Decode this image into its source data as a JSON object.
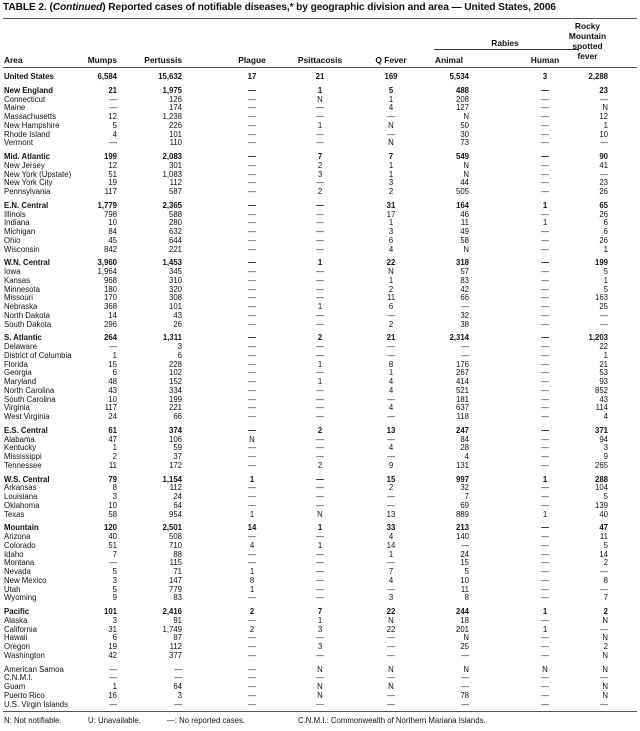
{
  "title": {
    "prefix": "TABLE 2. (",
    "continued": "Continued",
    "rest": ") Reported cases of notifiable diseases,* by geographic division and area — United States, 2006"
  },
  "headers": {
    "area": "Area",
    "mumps": "Mumps",
    "pertussis": "Pertussis",
    "plague": "Plague",
    "psittacosis": "Psittacosis",
    "q_fever": "Q Fever",
    "rabies": "Rabies",
    "animal": "Animal",
    "human": "Human",
    "rmsf": [
      "Rocky",
      "Mountain",
      "spotted",
      "fever"
    ]
  },
  "groups": [
    {
      "division": [
        "United States",
        "6,584",
        "15,632",
        "17",
        "21",
        "169",
        "5,534",
        "3",
        "2,288"
      ],
      "areas": []
    },
    {
      "division": [
        "New England",
        "21",
        "1,975",
        "—",
        "1",
        "5",
        "488",
        "—",
        "23"
      ],
      "areas": [
        [
          "Connecticut",
          "—",
          "126",
          "—",
          "N",
          "1",
          "208",
          "—",
          "—"
        ],
        [
          "Maine",
          "—",
          "174",
          "—",
          "—",
          "4",
          "127",
          "—",
          "N"
        ],
        [
          "Massachusetts",
          "12",
          "1,238",
          "—",
          "—",
          "—",
          "N",
          "—",
          "12"
        ],
        [
          "New Hampshire",
          "5",
          "226",
          "—",
          "1",
          "N",
          "50",
          "—",
          "1"
        ],
        [
          "Rhode Island",
          "4",
          "101",
          "—",
          "—",
          "—",
          "30",
          "—",
          "10"
        ],
        [
          "Vermont",
          "—",
          "110",
          "—",
          "—",
          "N",
          "73",
          "—",
          "—"
        ]
      ]
    },
    {
      "division": [
        "Mid. Atlantic",
        "199",
        "2,083",
        "—",
        "7",
        "7",
        "549",
        "—",
        "90"
      ],
      "areas": [
        [
          "New Jersey",
          "12",
          "301",
          "—",
          "2",
          "1",
          "N",
          "—",
          "41"
        ],
        [
          "New York (Upstate)",
          "51",
          "1,083",
          "—",
          "3",
          "1",
          "N",
          "—",
          "—"
        ],
        [
          "New York City",
          "19",
          "112",
          "—",
          "—",
          "3",
          "44",
          "—",
          "23"
        ],
        [
          "Pennsylvania",
          "117",
          "587",
          "—",
          "2",
          "2",
          "505",
          "—",
          "26"
        ]
      ]
    },
    {
      "division": [
        "E.N. Central",
        "1,779",
        "2,365",
        "—",
        "—",
        "31",
        "164",
        "1",
        "65"
      ],
      "areas": [
        [
          "Illinois",
          "798",
          "588",
          "—",
          "—",
          "17",
          "46",
          "—",
          "26"
        ],
        [
          "Indiana",
          "10",
          "280",
          "—",
          "—",
          "1",
          "11",
          "1",
          "6"
        ],
        [
          "Michigan",
          "84",
          "632",
          "—",
          "—",
          "3",
          "49",
          "—",
          "6"
        ],
        [
          "Ohio",
          "45",
          "644",
          "—",
          "—",
          "6",
          "58",
          "—",
          "26"
        ],
        [
          "Wisconsin",
          "842",
          "221",
          "—",
          "—",
          "4",
          "N",
          "—",
          "1"
        ]
      ]
    },
    {
      "division": [
        "W.N. Central",
        "3,960",
        "1,453",
        "—",
        "1",
        "22",
        "318",
        "—",
        "199"
      ],
      "areas": [
        [
          "Iowa",
          "1,964",
          "345",
          "—",
          "—",
          "N",
          "57",
          "—",
          "5"
        ],
        [
          "Kansas",
          "968",
          "310",
          "—",
          "—",
          "1",
          "83",
          "—",
          "1"
        ],
        [
          "Minnesota",
          "180",
          "320",
          "—",
          "—",
          "2",
          "42",
          "—",
          "5"
        ],
        [
          "Missouri",
          "170",
          "308",
          "—",
          "—",
          "11",
          "66",
          "—",
          "163"
        ],
        [
          "Nebraska",
          "368",
          "101",
          "—",
          "1",
          "6",
          "—",
          "—",
          "25"
        ],
        [
          "North Dakota",
          "14",
          "43",
          "—",
          "—",
          "—",
          "32",
          "—",
          "—"
        ],
        [
          "South Dakota",
          "296",
          "26",
          "—",
          "—",
          "2",
          "38",
          "—",
          "—"
        ]
      ]
    },
    {
      "division": [
        "S. Atlantic",
        "264",
        "1,311",
        "—",
        "2",
        "21",
        "2,314",
        "—",
        "1,203"
      ],
      "areas": [
        [
          "Delaware",
          "—",
          "3",
          "—",
          "—",
          "—",
          "—",
          "—",
          "22"
        ],
        [
          "District of Columbia",
          "1",
          "6",
          "—",
          "—",
          "—",
          "—",
          "—",
          "1"
        ],
        [
          "Florida",
          "15",
          "228",
          "—",
          "1",
          "8",
          "176",
          "—",
          "21"
        ],
        [
          "Georgia",
          "6",
          "102",
          "—",
          "—",
          "1",
          "267",
          "—",
          "53"
        ],
        [
          "Maryland",
          "48",
          "152",
          "—",
          "1",
          "4",
          "414",
          "—",
          "93"
        ],
        [
          "North Carolina",
          "43",
          "334",
          "—",
          "—",
          "4",
          "521",
          "—",
          "852"
        ],
        [
          "South Carolina",
          "10",
          "199",
          "—",
          "—",
          "—",
          "181",
          "—",
          "43"
        ],
        [
          "Virginia",
          "117",
          "221",
          "—",
          "—",
          "4",
          "637",
          "—",
          "114"
        ],
        [
          "West Virginia",
          "24",
          "66",
          "—",
          "—",
          "—",
          "118",
          "—",
          "4"
        ]
      ]
    },
    {
      "division": [
        "E.S. Central",
        "61",
        "374",
        "—",
        "2",
        "13",
        "247",
        "—",
        "371"
      ],
      "areas": [
        [
          "Alabama",
          "47",
          "106",
          "N",
          "—",
          "—",
          "84",
          "—",
          "94"
        ],
        [
          "Kentucky",
          "1",
          "59",
          "—",
          "—",
          "4",
          "28",
          "—",
          "3"
        ],
        [
          "Mississippi",
          "2",
          "37",
          "—",
          "—",
          "—",
          "4",
          "—",
          "9"
        ],
        [
          "Tennessee",
          "11",
          "172",
          "—",
          "2",
          "9",
          "131",
          "—",
          "265"
        ]
      ]
    },
    {
      "division": [
        "W.S. Central",
        "79",
        "1,154",
        "1",
        "—",
        "15",
        "997",
        "1",
        "288"
      ],
      "areas": [
        [
          "Arkansas",
          "8",
          "112",
          "—",
          "—",
          "2",
          "32",
          "—",
          "104"
        ],
        [
          "Louisiana",
          "3",
          "24",
          "—",
          "—",
          "—",
          "7",
          "—",
          "5"
        ],
        [
          "Oklahoma",
          "10",
          "64",
          "—",
          "—",
          "—",
          "69",
          "—",
          "139"
        ],
        [
          "Texas",
          "58",
          "954",
          "1",
          "N",
          "13",
          "889",
          "1",
          "40"
        ]
      ]
    },
    {
      "division": [
        "Mountain",
        "120",
        "2,501",
        "14",
        "1",
        "33",
        "213",
        "—",
        "47"
      ],
      "areas": [
        [
          "Arizona",
          "40",
          "508",
          "—",
          "—",
          "4",
          "140",
          "—",
          "11"
        ],
        [
          "Colorado",
          "51",
          "710",
          "4",
          "1",
          "14",
          "—",
          "—",
          "5"
        ],
        [
          "Idaho",
          "7",
          "88",
          "—",
          "—",
          "1",
          "24",
          "—",
          "14"
        ],
        [
          "Montana",
          "—",
          "115",
          "—",
          "—",
          "—",
          "15",
          "—",
          "2"
        ],
        [
          "Nevada",
          "5",
          "71",
          "1",
          "—",
          "7",
          "5",
          "—",
          "—"
        ],
        [
          "New Mexico",
          "3",
          "147",
          "8",
          "—",
          "4",
          "10",
          "—",
          "8"
        ],
        [
          "Utah",
          "5",
          "779",
          "1",
          "—",
          "—",
          "11",
          "—",
          "—"
        ],
        [
          "Wyoming",
          "9",
          "83",
          "—",
          "—",
          "3",
          "8",
          "—",
          "7"
        ]
      ]
    },
    {
      "division": [
        "Pacific",
        "101",
        "2,416",
        "2",
        "7",
        "22",
        "244",
        "1",
        "2"
      ],
      "areas": [
        [
          "Alaska",
          "3",
          "91",
          "—",
          "1",
          "N",
          "18",
          "—",
          "N"
        ],
        [
          "California",
          "31",
          "1,749",
          "2",
          "3",
          "22",
          "201",
          "1",
          "—"
        ],
        [
          "Hawaii",
          "6",
          "87",
          "—",
          "—",
          "—",
          "N",
          "—",
          "N"
        ],
        [
          "Oregon",
          "19",
          "112",
          "—",
          "3",
          "—",
          "25",
          "—",
          "2"
        ],
        [
          "Washington",
          "42",
          "377",
          "—",
          "—",
          "—",
          "—",
          "—",
          "N"
        ]
      ]
    },
    {
      "division": null,
      "areas": [
        [
          "American Samoa",
          "—",
          "—",
          "—",
          "N",
          "N",
          "N",
          "N",
          "N"
        ],
        [
          "C.N.M.I.",
          "—",
          "—",
          "—",
          "—",
          "—",
          "—",
          "—",
          "—"
        ],
        [
          "Guam",
          "1",
          "64",
          "—",
          "N",
          "N",
          "—",
          "—",
          "N"
        ],
        [
          "Puerto Rico",
          "16",
          "3",
          "—",
          "N",
          "—",
          "78",
          "—",
          "N"
        ],
        [
          "U.S. Virgin Islands",
          "—",
          "—",
          "—",
          "—",
          "—",
          "—",
          "—",
          "—"
        ]
      ]
    }
  ],
  "footnotes": [
    "N: Not notifiable.",
    "U: Unavailable.",
    "—: No reported cases.",
    "C.N.M.I.: Commonwealth of Northern Mariana Islands."
  ]
}
